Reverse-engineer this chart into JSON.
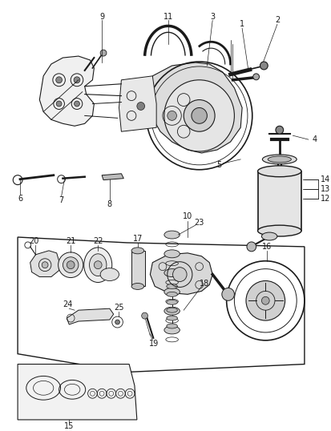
{
  "background_color": "#ffffff",
  "fig_width": 4.14,
  "fig_height": 5.38,
  "dpi": 100,
  "line_color": "#2a2a2a",
  "label_color": "#1a1a1a",
  "parts": {
    "bracket_color": "#e8e8e8",
    "pump_color": "#d0d0d0",
    "reservoir_color": "#c8c8c8"
  }
}
